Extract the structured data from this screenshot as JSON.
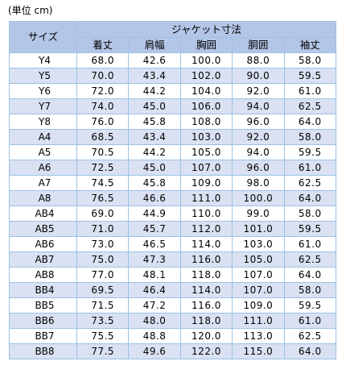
{
  "unit_note": "(単位 cm)",
  "table": {
    "size_header": "サイズ",
    "group_header": "ジャケット寸法",
    "columns": [
      "着丈",
      "肩幅",
      "胸囲",
      "胴囲",
      "袖丈"
    ],
    "rows": [
      {
        "size": "Y4",
        "values": [
          "68.0",
          "42.6",
          "100.0",
          "88.0",
          "58.0"
        ]
      },
      {
        "size": "Y5",
        "values": [
          "70.0",
          "43.4",
          "102.0",
          "90.0",
          "59.5"
        ]
      },
      {
        "size": "Y6",
        "values": [
          "72.0",
          "44.2",
          "104.0",
          "92.0",
          "61.0"
        ]
      },
      {
        "size": "Y7",
        "values": [
          "74.0",
          "45.0",
          "106.0",
          "94.0",
          "62.5"
        ]
      },
      {
        "size": "Y8",
        "values": [
          "76.0",
          "45.8",
          "108.0",
          "96.0",
          "64.0"
        ]
      },
      {
        "size": "A4",
        "values": [
          "68.5",
          "43.4",
          "103.0",
          "92.0",
          "58.0"
        ]
      },
      {
        "size": "A5",
        "values": [
          "70.5",
          "44.2",
          "105.0",
          "94.0",
          "59.5"
        ]
      },
      {
        "size": "A6",
        "values": [
          "72.5",
          "45.0",
          "107.0",
          "96.0",
          "61.0"
        ]
      },
      {
        "size": "A7",
        "values": [
          "74.5",
          "45.8",
          "109.0",
          "98.0",
          "62.5"
        ]
      },
      {
        "size": "A8",
        "values": [
          "76.5",
          "46.6",
          "111.0",
          "100.0",
          "64.0"
        ]
      },
      {
        "size": "AB4",
        "values": [
          "69.0",
          "44.9",
          "110.0",
          "99.0",
          "58.0"
        ]
      },
      {
        "size": "AB5",
        "values": [
          "71.0",
          "45.7",
          "112.0",
          "101.0",
          "59.5"
        ]
      },
      {
        "size": "AB6",
        "values": [
          "73.0",
          "46.5",
          "114.0",
          "103.0",
          "61.0"
        ]
      },
      {
        "size": "AB7",
        "values": [
          "75.0",
          "47.3",
          "116.0",
          "105.0",
          "62.5"
        ]
      },
      {
        "size": "AB8",
        "values": [
          "77.0",
          "48.1",
          "118.0",
          "107.0",
          "64.0"
        ]
      },
      {
        "size": "BB4",
        "values": [
          "69.5",
          "46.4",
          "114.0",
          "107.0",
          "58.0"
        ]
      },
      {
        "size": "BB5",
        "values": [
          "71.5",
          "47.2",
          "116.0",
          "109.0",
          "59.5"
        ]
      },
      {
        "size": "BB6",
        "values": [
          "73.5",
          "48.0",
          "118.0",
          "111.0",
          "61.0"
        ]
      },
      {
        "size": "BB7",
        "values": [
          "75.5",
          "48.8",
          "120.0",
          "113.0",
          "62.5"
        ]
      },
      {
        "size": "BB8",
        "values": [
          "77.5",
          "49.6",
          "122.0",
          "115.0",
          "64.0"
        ]
      }
    ]
  },
  "colors": {
    "header_fill": "#b4c6e7",
    "band_fill": "#d9e1f2",
    "plain_fill": "#ffffff",
    "border": "#9cc2e5"
  }
}
